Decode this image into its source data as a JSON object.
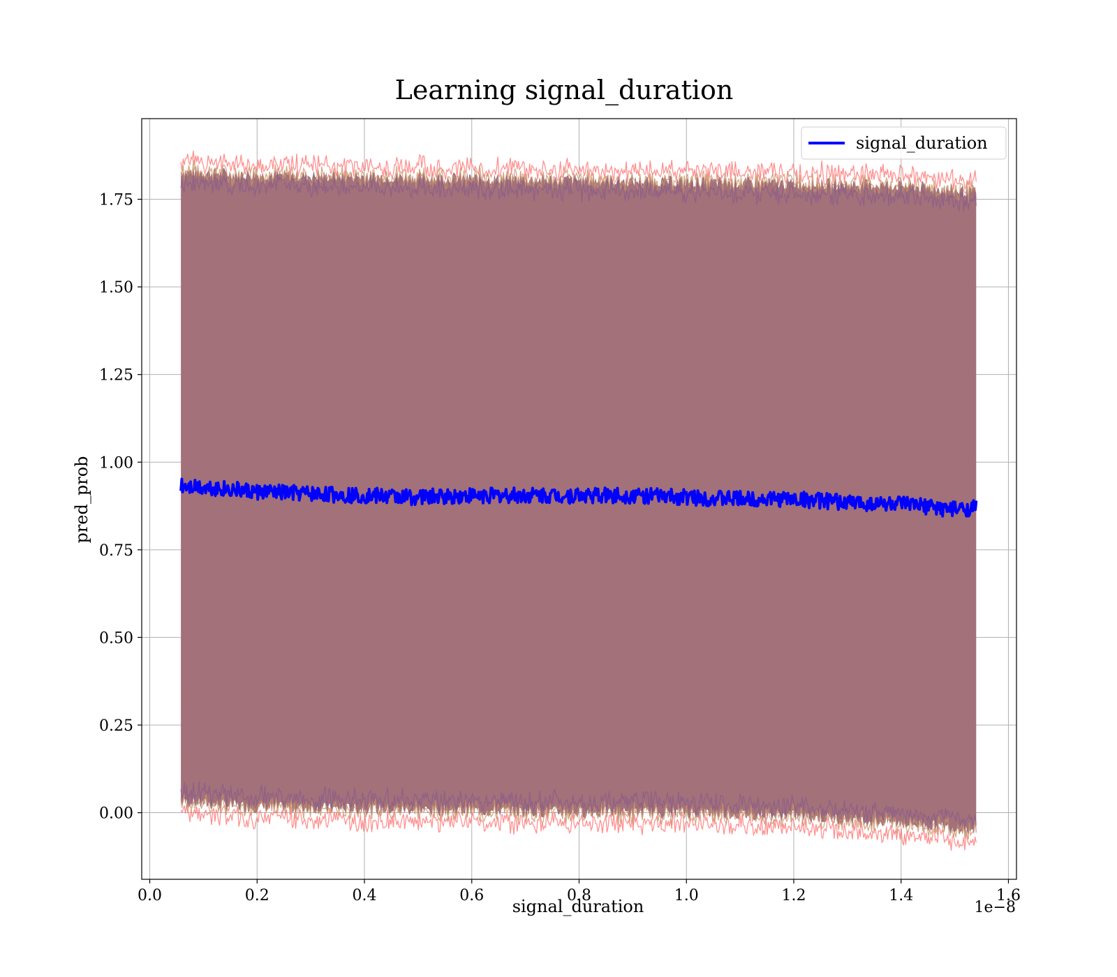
{
  "chart_data": {
    "type": "line",
    "title": "Learning signal_duration",
    "xlabel": "signal_duration",
    "ylabel": "pred_prob",
    "x_offset_label": "1e−8",
    "xlim": [
      -0.015,
      1.615
    ],
    "ylim": [
      -0.19,
      1.98
    ],
    "x_ticks": [
      0.0,
      0.2,
      0.4,
      0.6,
      0.8,
      1.0,
      1.2,
      1.4,
      1.6
    ],
    "x_tick_labels": [
      "0.0",
      "0.2",
      "0.4",
      "0.6",
      "0.8",
      "1.0",
      "1.2",
      "1.4",
      "1.6"
    ],
    "y_ticks": [
      0.0,
      0.25,
      0.5,
      0.75,
      1.0,
      1.25,
      1.5,
      1.75
    ],
    "y_tick_labels": [
      "0.00",
      "0.25",
      "0.50",
      "0.75",
      "1.00",
      "1.25",
      "1.50",
      "1.75"
    ],
    "grid": true,
    "legend_position": "top-right",
    "legend": [
      "signal_duration"
    ],
    "colors": {
      "line": "#0000ff",
      "band_fill": "#a2717a",
      "band_edge_outer": "#ff6b6b",
      "band_edge_mid": "#c9956a",
      "band_edge_inner": "#8a5a8a"
    },
    "series": [
      {
        "name": "signal_duration",
        "x": [
          0.058,
          0.1,
          0.2,
          0.3,
          0.4,
          0.5,
          0.6,
          0.7,
          0.8,
          0.9,
          1.0,
          1.1,
          1.2,
          1.3,
          1.4,
          1.5,
          1.54
        ],
        "y": [
          0.935,
          0.93,
          0.915,
          0.91,
          0.905,
          0.9,
          0.905,
          0.905,
          0.905,
          0.905,
          0.9,
          0.895,
          0.895,
          0.885,
          0.88,
          0.865,
          0.87
        ]
      }
    ],
    "band": {
      "x": [
        0.058,
        0.2,
        0.4,
        0.6,
        0.8,
        1.0,
        1.2,
        1.4,
        1.54
      ],
      "upper": [
        1.83,
        1.82,
        1.815,
        1.81,
        1.805,
        1.8,
        1.795,
        1.79,
        1.77
      ],
      "lower": [
        0.03,
        0.015,
        0.01,
        0.005,
        0.0,
        0.0,
        -0.01,
        -0.03,
        -0.05
      ]
    }
  }
}
